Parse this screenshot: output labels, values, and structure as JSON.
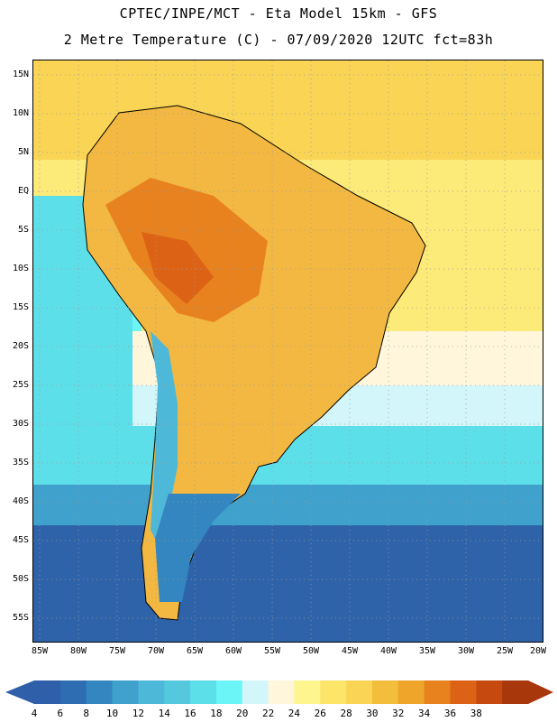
{
  "header": {
    "line1": "CPTEC/INPE/MCT -  Eta Model 15km - GFS",
    "line2": "2 Metre Temperature (C) - 07/09/2020 12UTC fct=83h"
  },
  "axes": {
    "lat_labels": [
      "15N",
      "10N",
      "5N",
      "EQ",
      "5S",
      "10S",
      "15S",
      "20S",
      "25S",
      "30S",
      "35S",
      "40S",
      "45S",
      "50S",
      "55S"
    ],
    "lon_labels": [
      "85W",
      "80W",
      "75W",
      "70W",
      "65W",
      "60W",
      "55W",
      "50W",
      "45W",
      "40W",
      "35W",
      "30W",
      "25W",
      "20W"
    ]
  },
  "colorbar": {
    "labels": [
      "4",
      "6",
      "8",
      "10",
      "12",
      "14",
      "16",
      "18",
      "20",
      "22",
      "24",
      "26",
      "28",
      "30",
      "32",
      "34",
      "36",
      "38"
    ],
    "colors": [
      "#2E5FA8",
      "#2F6DB3",
      "#3386C0",
      "#3FA1CC",
      "#4DB8D8",
      "#55C8DE",
      "#5DDFEA",
      "#6BF5F7",
      "#D2F6FA",
      "#FFF6DC",
      "#FEF58F",
      "#FDE56A",
      "#F9D455",
      "#F2BE3C",
      "#EFA52A",
      "#E8821F",
      "#DC6316",
      "#C64A10",
      "#A8370C"
    ]
  },
  "map": {
    "grid": "dotted",
    "land_color": "#F3B841",
    "ocean_warm_color": "#FCEA79",
    "ocean_cold_color": "#2E63AA"
  }
}
